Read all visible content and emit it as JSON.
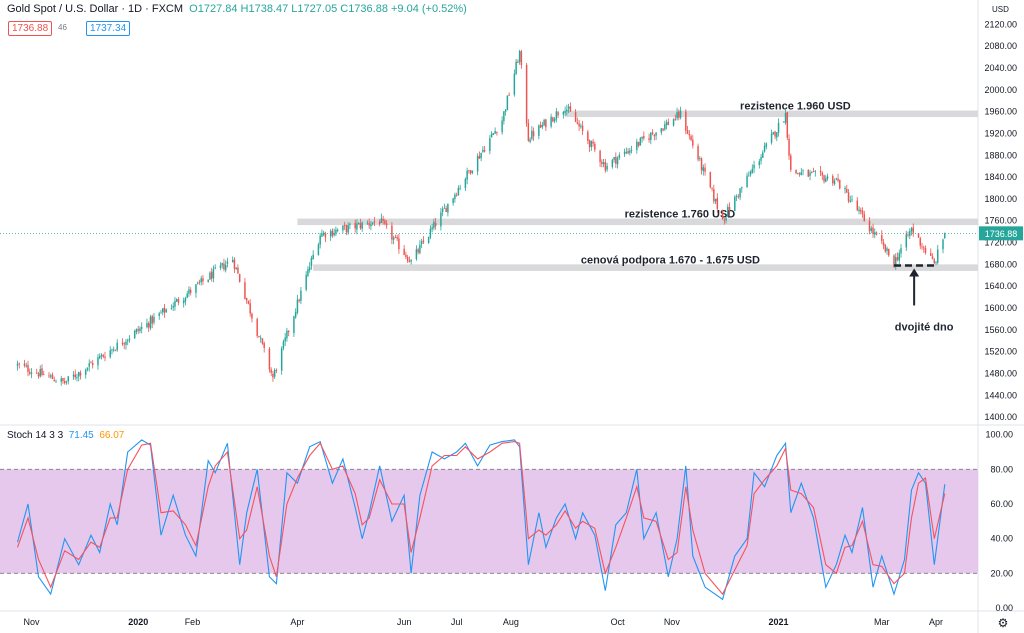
{
  "header": {
    "symbol": "Gold Spot / U.S. Dollar · 1D · FXCM",
    "ohlc": "O1727.84 H1738.47 L1727.05 C1736.88 +9.04 (+0.52%)",
    "bid": "1736.88",
    "spread": "46",
    "ask": "1737.34",
    "currency_label": "USD",
    "last_price_label": "1736.88"
  },
  "stoch": {
    "label": "Stoch 14 3 3",
    "k_value": "71.45",
    "d_value": "66.07"
  },
  "annotations": {
    "res_high": "rezistence 1.960 USD",
    "res_mid": "rezistence 1.760 USD",
    "support": "cenová podpora 1.670 - 1.675 USD",
    "double_bottom": "dvojité dno"
  },
  "colors": {
    "up": "#26a69a",
    "down": "#ef5350",
    "k_line": "#2196f3",
    "d_line": "#f7525f",
    "stoch_band": "#e1bee7",
    "zone": "#d9d9db",
    "last_price": "#26a69a"
  },
  "chart_data": [
    {
      "type": "candlestick",
      "title": "Gold Spot / U.S. Dollar · 1D · FXCM",
      "y_ticks": [
        1400,
        1440,
        1480,
        1520,
        1560,
        1600,
        1640,
        1680,
        1720,
        1760,
        1800,
        1840,
        1880,
        1920,
        1960,
        2000,
        2040,
        2080,
        2120
      ],
      "ylim": [
        1380,
        2150
      ],
      "x_labels": [
        "Nov",
        "2020",
        "Feb",
        "Apr",
        "Jun",
        "Jul",
        "Aug",
        "Oct",
        "Nov",
        "2021",
        "Mar",
        "Apr"
      ],
      "bold_x_labels": [
        "2020",
        "2021"
      ],
      "key_points": [
        {
          "date": "2019-10-24",
          "close": 1495
        },
        {
          "date": "2019-11-20",
          "close": 1463
        },
        {
          "date": "2020-01-08",
          "close": 1575
        },
        {
          "date": "2020-02-24",
          "close": 1690
        },
        {
          "date": "2020-03-18",
          "close": 1472
        },
        {
          "date": "2020-04-14",
          "close": 1735
        },
        {
          "date": "2020-05-18",
          "close": 1760
        },
        {
          "date": "2020-06-05",
          "close": 1685
        },
        {
          "date": "2020-07-27",
          "close": 1945
        },
        {
          "date": "2020-08-06",
          "close": 2068
        },
        {
          "date": "2020-08-11",
          "close": 1912
        },
        {
          "date": "2020-09-01",
          "close": 1970
        },
        {
          "date": "2020-09-24",
          "close": 1860
        },
        {
          "date": "2020-11-06",
          "close": 1955
        },
        {
          "date": "2020-11-30",
          "close": 1762
        },
        {
          "date": "2021-01-05",
          "close": 1955
        },
        {
          "date": "2021-01-08",
          "close": 1850
        },
        {
          "date": "2021-02-03",
          "close": 1835
        },
        {
          "date": "2021-03-08",
          "close": 1683
        },
        {
          "date": "2021-03-18",
          "close": 1745
        },
        {
          "date": "2021-03-31",
          "close": 1680
        },
        {
          "date": "2021-04-06",
          "close": 1736.88
        }
      ],
      "zones": [
        {
          "label": "rezistence 1.960 USD",
          "from": 1950,
          "to": 1962,
          "start": "2020-09-01",
          "end": "2021-04-25"
        },
        {
          "label": "rezistence 1.760 USD",
          "from": 1752,
          "to": 1764,
          "start": "2020-04-01",
          "end": "2021-04-25"
        },
        {
          "label": "cenová podpora 1.670 - 1.675 USD",
          "from": 1668,
          "to": 1680,
          "start": "2020-04-10",
          "end": "2021-04-25"
        }
      ],
      "double_bottom": {
        "level": 1678,
        "start": "2021-03-08",
        "end": "2021-03-31",
        "label": "dvojité dno"
      },
      "last_price": 1736.88
    },
    {
      "type": "line",
      "title": "Stoch 14 3 3",
      "ylim": [
        0,
        105
      ],
      "y_ticks": [
        0,
        20,
        40,
        60,
        80,
        100
      ],
      "band": [
        20,
        80
      ],
      "series": [
        {
          "name": "%K",
          "color": "#2196f3",
          "final_value": 71.45,
          "keypoints": [
            [
              "2019-10-24",
              38
            ],
            [
              "2019-10-30",
              60
            ],
            [
              "2019-11-05",
              18
            ],
            [
              "2019-11-12",
              8
            ],
            [
              "2019-11-20",
              40
            ],
            [
              "2019-11-28",
              25
            ],
            [
              "2019-12-05",
              42
            ],
            [
              "2019-12-10",
              32
            ],
            [
              "2019-12-16",
              60
            ],
            [
              "2019-12-20",
              48
            ],
            [
              "2019-12-26",
              90
            ],
            [
              "2020-01-03",
              97
            ],
            [
              "2020-01-08",
              94
            ],
            [
              "2020-01-14",
              42
            ],
            [
              "2020-01-21",
              65
            ],
            [
              "2020-01-28",
              42
            ],
            [
              "2020-02-03",
              30
            ],
            [
              "2020-02-10",
              85
            ],
            [
              "2020-02-14",
              78
            ],
            [
              "2020-02-21",
              95
            ],
            [
              "2020-02-28",
              25
            ],
            [
              "2020-03-03",
              55
            ],
            [
              "2020-03-09",
              80
            ],
            [
              "2020-03-16",
              18
            ],
            [
              "2020-03-20",
              14
            ],
            [
              "2020-03-26",
              78
            ],
            [
              "2020-04-01",
              72
            ],
            [
              "2020-04-08",
              93
            ],
            [
              "2020-04-14",
              96
            ],
            [
              "2020-04-21",
              72
            ],
            [
              "2020-04-27",
              86
            ],
            [
              "2020-05-04",
              58
            ],
            [
              "2020-05-08",
              40
            ],
            [
              "2020-05-12",
              55
            ],
            [
              "2020-05-18",
              82
            ],
            [
              "2020-05-25",
              50
            ],
            [
              "2020-06-01",
              65
            ],
            [
              "2020-06-05",
              20
            ],
            [
              "2020-06-10",
              65
            ],
            [
              "2020-06-17",
              90
            ],
            [
              "2020-06-24",
              86
            ],
            [
              "2020-07-01",
              90
            ],
            [
              "2020-07-06",
              95
            ],
            [
              "2020-07-13",
              82
            ],
            [
              "2020-07-20",
              94
            ],
            [
              "2020-07-27",
              96
            ],
            [
              "2020-08-03",
              97
            ],
            [
              "2020-08-06",
              93
            ],
            [
              "2020-08-11",
              25
            ],
            [
              "2020-08-17",
              55
            ],
            [
              "2020-08-21",
              35
            ],
            [
              "2020-08-27",
              52
            ],
            [
              "2020-09-01",
              60
            ],
            [
              "2020-09-07",
              40
            ],
            [
              "2020-09-11",
              55
            ],
            [
              "2020-09-18",
              42
            ],
            [
              "2020-09-24",
              10
            ],
            [
              "2020-09-30",
              48
            ],
            [
              "2020-10-06",
              55
            ],
            [
              "2020-10-12",
              80
            ],
            [
              "2020-10-16",
              40
            ],
            [
              "2020-10-23",
              55
            ],
            [
              "2020-10-30",
              18
            ],
            [
              "2020-11-04",
              40
            ],
            [
              "2020-11-09",
              82
            ],
            [
              "2020-11-13",
              30
            ],
            [
              "2020-11-20",
              12
            ],
            [
              "2020-11-30",
              5
            ],
            [
              "2020-12-07",
              30
            ],
            [
              "2020-12-14",
              40
            ],
            [
              "2020-12-18",
              78
            ],
            [
              "2020-12-24",
              70
            ],
            [
              "2020-12-31",
              88
            ],
            [
              "2021-01-05",
              95
            ],
            [
              "2021-01-08",
              55
            ],
            [
              "2021-01-14",
              72
            ],
            [
              "2021-01-21",
              52
            ],
            [
              "2021-01-28",
              12
            ],
            [
              "2021-02-03",
              25
            ],
            [
              "2021-02-08",
              42
            ],
            [
              "2021-02-12",
              32
            ],
            [
              "2021-02-18",
              58
            ],
            [
              "2021-02-24",
              12
            ],
            [
              "2021-03-01",
              30
            ],
            [
              "2021-03-08",
              8
            ],
            [
              "2021-03-14",
              28
            ],
            [
              "2021-03-18",
              68
            ],
            [
              "2021-03-22",
              78
            ],
            [
              "2021-03-26",
              72
            ],
            [
              "2021-03-31",
              25
            ],
            [
              "2021-04-06",
              71.45
            ]
          ]
        },
        {
          "name": "%D",
          "color": "#f7525f",
          "final_value": 66.07,
          "keypoints": [
            [
              "2019-10-24",
              35
            ],
            [
              "2019-10-30",
              52
            ],
            [
              "2019-11-05",
              28
            ],
            [
              "2019-11-12",
              12
            ],
            [
              "2019-11-20",
              33
            ],
            [
              "2019-11-28",
              28
            ],
            [
              "2019-12-05",
              38
            ],
            [
              "2019-12-10",
              35
            ],
            [
              "2019-12-16",
              52
            ],
            [
              "2019-12-20",
              52
            ],
            [
              "2019-12-26",
              80
            ],
            [
              "2020-01-03",
              94
            ],
            [
              "2020-01-08",
              95
            ],
            [
              "2020-01-14",
              55
            ],
            [
              "2020-01-21",
              56
            ],
            [
              "2020-01-28",
              48
            ],
            [
              "2020-02-03",
              36
            ],
            [
              "2020-02-10",
              70
            ],
            [
              "2020-02-14",
              82
            ],
            [
              "2020-02-21",
              90
            ],
            [
              "2020-02-28",
              40
            ],
            [
              "2020-03-03",
              45
            ],
            [
              "2020-03-09",
              70
            ],
            [
              "2020-03-16",
              30
            ],
            [
              "2020-03-20",
              18
            ],
            [
              "2020-03-26",
              60
            ],
            [
              "2020-04-01",
              75
            ],
            [
              "2020-04-08",
              88
            ],
            [
              "2020-04-14",
              95
            ],
            [
              "2020-04-21",
              80
            ],
            [
              "2020-04-27",
              82
            ],
            [
              "2020-05-04",
              66
            ],
            [
              "2020-05-08",
              48
            ],
            [
              "2020-05-12",
              52
            ],
            [
              "2020-05-18",
              74
            ],
            [
              "2020-05-25",
              60
            ],
            [
              "2020-06-01",
              60
            ],
            [
              "2020-06-05",
              32
            ],
            [
              "2020-06-10",
              52
            ],
            [
              "2020-06-17",
              82
            ],
            [
              "2020-06-24",
              88
            ],
            [
              "2020-07-01",
              88
            ],
            [
              "2020-07-06",
              93
            ],
            [
              "2020-07-13",
              86
            ],
            [
              "2020-07-20",
              90
            ],
            [
              "2020-07-27",
              95
            ],
            [
              "2020-08-03",
              96
            ],
            [
              "2020-08-06",
              95
            ],
            [
              "2020-08-11",
              40
            ],
            [
              "2020-08-17",
              45
            ],
            [
              "2020-08-21",
              42
            ],
            [
              "2020-08-27",
              48
            ],
            [
              "2020-09-01",
              56
            ],
            [
              "2020-09-07",
              46
            ],
            [
              "2020-09-11",
              50
            ],
            [
              "2020-09-18",
              46
            ],
            [
              "2020-09-24",
              20
            ],
            [
              "2020-09-30",
              35
            ],
            [
              "2020-10-06",
              52
            ],
            [
              "2020-10-12",
              70
            ],
            [
              "2020-10-16",
              52
            ],
            [
              "2020-10-23",
              50
            ],
            [
              "2020-10-30",
              28
            ],
            [
              "2020-11-04",
              32
            ],
            [
              "2020-11-09",
              70
            ],
            [
              "2020-11-13",
              45
            ],
            [
              "2020-11-20",
              20
            ],
            [
              "2020-11-30",
              8
            ],
            [
              "2020-12-07",
              22
            ],
            [
              "2020-12-14",
              36
            ],
            [
              "2020-12-18",
              66
            ],
            [
              "2020-12-24",
              74
            ],
            [
              "2020-12-31",
              82
            ],
            [
              "2021-01-05",
              92
            ],
            [
              "2021-01-08",
              68
            ],
            [
              "2021-01-14",
              66
            ],
            [
              "2021-01-21",
              58
            ],
            [
              "2021-01-28",
              25
            ],
            [
              "2021-02-03",
              20
            ],
            [
              "2021-02-08",
              35
            ],
            [
              "2021-02-12",
              36
            ],
            [
              "2021-02-18",
              50
            ],
            [
              "2021-02-24",
              25
            ],
            [
              "2021-03-01",
              24
            ],
            [
              "2021-03-08",
              14
            ],
            [
              "2021-03-14",
              20
            ],
            [
              "2021-03-18",
              52
            ],
            [
              "2021-03-22",
              72
            ],
            [
              "2021-03-26",
              75
            ],
            [
              "2021-03-31",
              40
            ],
            [
              "2021-04-06",
              66.07
            ]
          ]
        }
      ],
      "values_shown": [
        71.45,
        66.07
      ]
    }
  ]
}
